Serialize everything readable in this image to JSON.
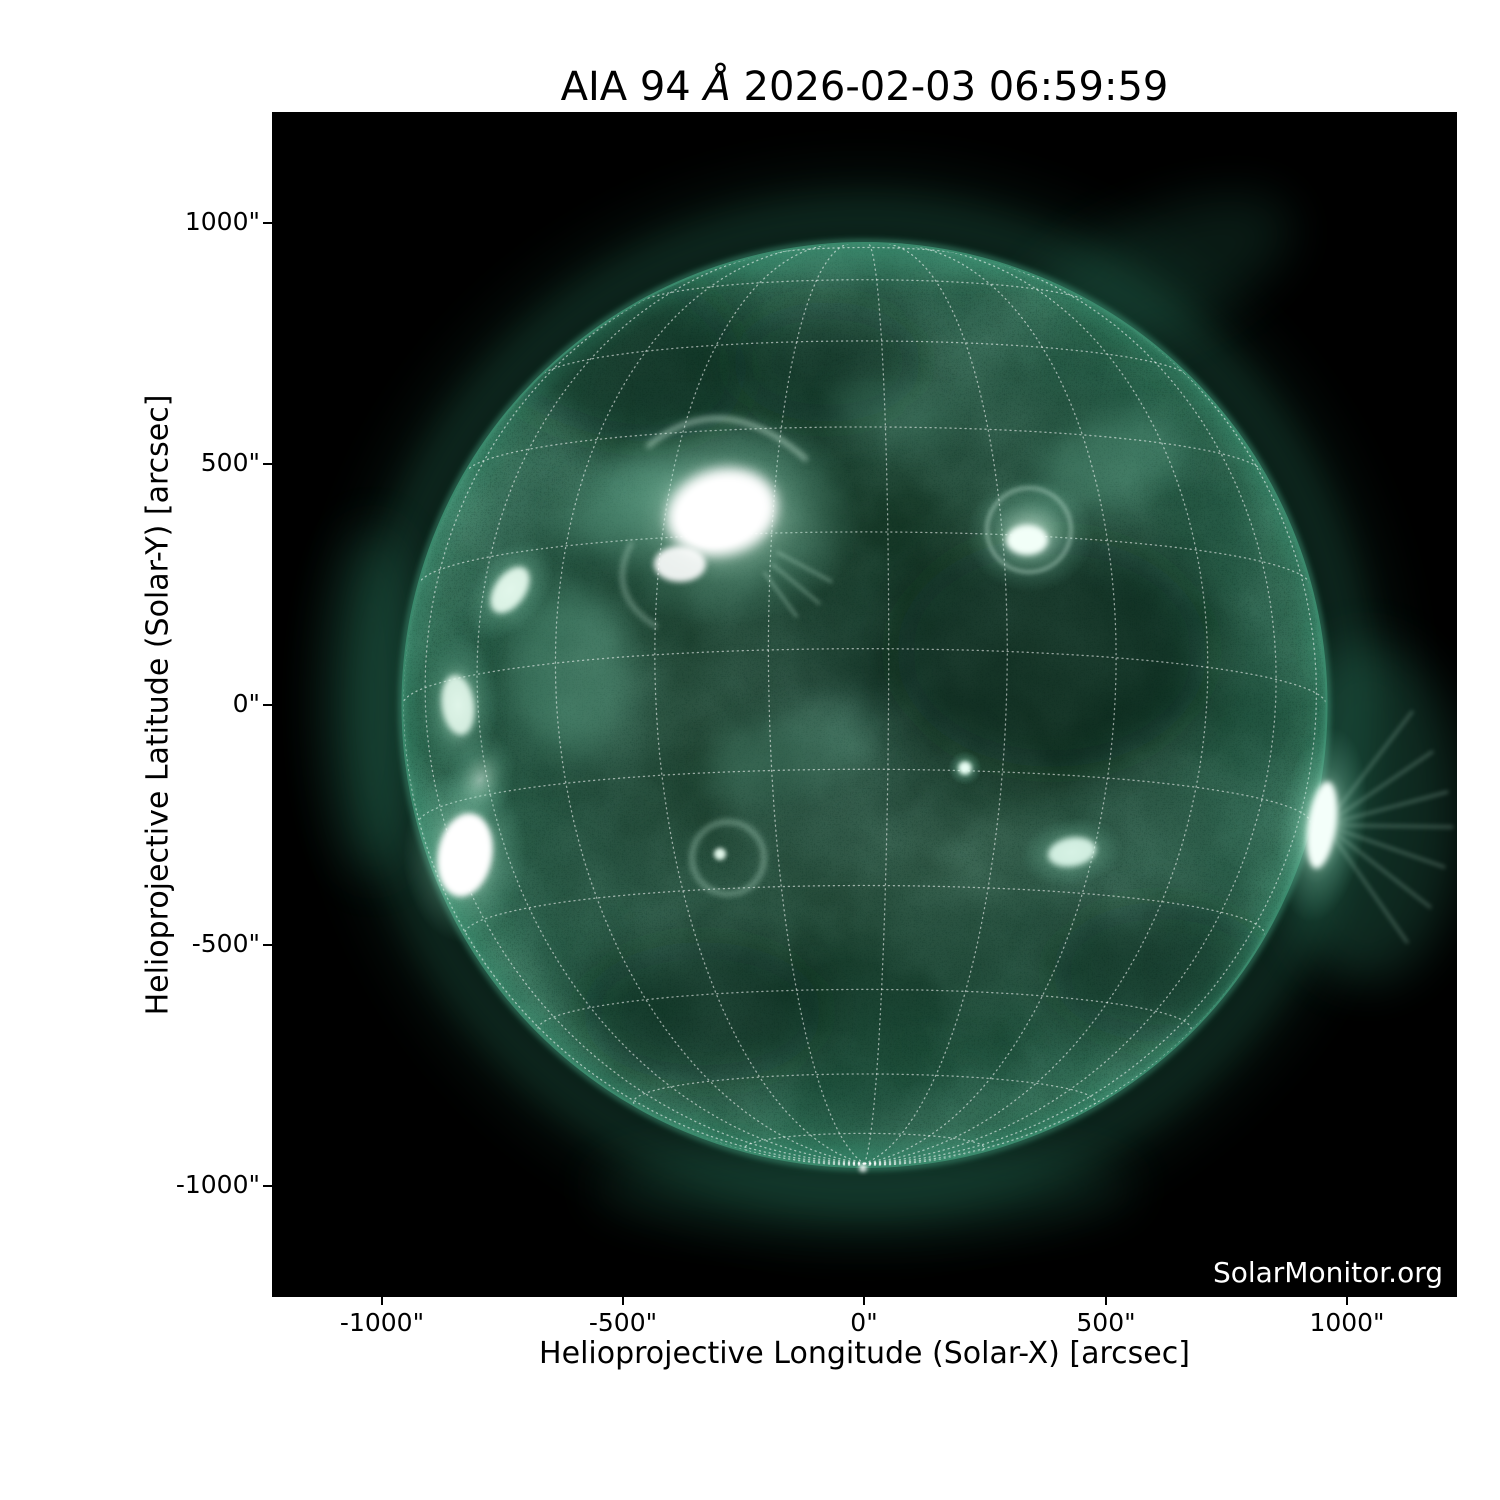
{
  "figure": {
    "title": {
      "pre": "AIA 94 ",
      "wavelength_symbol": "Å",
      "post": " 2026-02-03 06:59:59",
      "full": "AIA 94 Å 2026-02-03 06:59:59"
    },
    "watermark": "SolarMonitor.org",
    "xaxis": {
      "label": "Helioprojective Longitude (Solar-X) [arcsec]",
      "ticks": [
        "-1000\"",
        "-500\"",
        "0\"",
        "500\"",
        "1000\""
      ]
    },
    "yaxis": {
      "label": "Helioprojective Latitude (Solar-Y) [arcsec]",
      "ticks": [
        "1000\"",
        "500\"",
        "0\"",
        "-500\"",
        "-1000\""
      ]
    },
    "colors": {
      "page_background": "#ffffff",
      "plot_background": "#000000",
      "text": "#000000",
      "watermark_text": "#ffffff",
      "disk_green": "#2e7a5d",
      "limb_rim_green": "#4fae8d",
      "bright_feature": "#ffffff",
      "grid": "rgba(255,255,255,0.55)"
    }
  },
  "chart_data": {
    "type": "heatmap",
    "subtype": "solar EUV image (full-disk)",
    "title": "AIA 94 Å 2026-02-03 06:59:59",
    "wavelength": "94 Å",
    "observation_time": "2026-02-03 06:59:59",
    "xlabel": "Helioprojective Longitude (Solar-X) [arcsec]",
    "ylabel": "Helioprojective Latitude (Solar-Y) [arcsec]",
    "xlim": [
      -1228,
      1228
    ],
    "ylim": [
      -1228,
      1228
    ],
    "xticks_arcsec": [
      -1000,
      -500,
      0,
      500,
      1000
    ],
    "yticks_arcsec": [
      1000,
      500,
      0,
      -500,
      -1000
    ],
    "colormap": "AIA 94 green on black",
    "solar_disk": {
      "center_arcsec": [
        0,
        0
      ],
      "radius_arcsec": 960
    },
    "heliographic_grid": {
      "visible": true,
      "style": "dotted white",
      "spacing_deg": 15,
      "south_pole_tipped_toward_viewer": true
    },
    "watermark": "SolarMonitor.org",
    "features": [
      {
        "name": "large bright active region with saturated core",
        "solar_x_arcsec": -300,
        "solar_y_arcsec": 394
      },
      {
        "name": "active region with loop system",
        "solar_x_arcsec": 343,
        "solar_y_arcsec": 352
      },
      {
        "name": "bright patch near east limb (north)",
        "solar_x_arcsec": -735,
        "solar_y_arcsec": 238
      },
      {
        "name": "active region chain at east limb",
        "solar_x_arcsec": -843,
        "solar_y_arcsec": 0
      },
      {
        "name": "bright active region east limb (south)",
        "solar_x_arcsec": -828,
        "solar_y_arcsec": -311
      },
      {
        "name": "active region at west limb with coronal rays",
        "solar_x_arcsec": 948,
        "solar_y_arcsec": -249
      },
      {
        "name": "small bright point",
        "solar_x_arcsec": 208,
        "solar_y_arcsec": -131
      },
      {
        "name": "moderate bright patch",
        "solar_x_arcsec": 430,
        "solar_y_arcsec": -305
      },
      {
        "name": "small loop structure",
        "solar_x_arcsec": -283,
        "solar_y_arcsec": -317
      }
    ]
  }
}
